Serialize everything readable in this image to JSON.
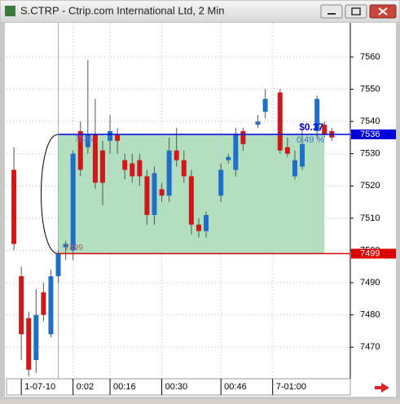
{
  "chart_data": {
    "type": "candlestick",
    "title": "S.CTRP - Ctrip.com International Ltd, 2 Min",
    "x": [
      1,
      2,
      3,
      4,
      5,
      6,
      7,
      8,
      9,
      10,
      11,
      12,
      13,
      14,
      15,
      16,
      17,
      18,
      19,
      20,
      21,
      22,
      23,
      24,
      25,
      26,
      27,
      29,
      30,
      31,
      32,
      34,
      35,
      37,
      38,
      39,
      40,
      42,
      43,
      44
    ],
    "open": [
      7525,
      7492,
      7479,
      7466,
      7487,
      7474,
      7492,
      7501,
      7500,
      7537,
      7532,
      7536,
      7531,
      7534,
      7536,
      7528,
      7527,
      7528,
      7523,
      7511,
      7519,
      7517,
      7531,
      7528,
      7523,
      7508,
      7506,
      7517,
      7528,
      7525,
      7537,
      7539,
      7543,
      7549,
      7532,
      7523,
      7526,
      7537,
      7539,
      7537
    ],
    "high": [
      7532,
      7495,
      7481,
      7488,
      7490,
      7494,
      7500,
      7503,
      7531,
      7540,
      7559,
      7547,
      7534,
      7542,
      7538,
      7530,
      7530,
      7530,
      7525,
      7526,
      7521,
      7535,
      7538,
      7531,
      7525,
      7510,
      7512,
      7527,
      7530,
      7538,
      7538,
      7542,
      7550,
      7550,
      7535,
      7531,
      7537,
      7548,
      7540,
      7538
    ],
    "low": [
      7500,
      7466,
      7461,
      7462,
      7478,
      7473,
      7490,
      7497,
      7497,
      7523,
      7530,
      7519,
      7514,
      7530,
      7530,
      7522,
      7521,
      7520,
      7508,
      7508,
      7515,
      7515,
      7526,
      7521,
      7505,
      7504,
      7504,
      7515,
      7527,
      7523,
      7531,
      7538,
      7541,
      7530,
      7529,
      7522,
      7525,
      7535,
      7535,
      7534
    ],
    "close": [
      7502,
      7474,
      7463,
      7480,
      7480,
      7492,
      7499,
      7502,
      7530,
      7525,
      7536,
      7521,
      7521,
      7537,
      7534,
      7525,
      7523,
      7523,
      7511,
      7524,
      7517,
      7531,
      7528,
      7523,
      7508,
      7506,
      7511,
      7525,
      7529,
      7536,
      7533,
      7540,
      7547,
      7531,
      7530,
      7528,
      7533,
      7547,
      7536,
      7535
    ],
    "up_color": "#1f6fc8",
    "down_color": "#d01818",
    "xlim": [
      0,
      46.5
    ],
    "xticks": [
      {
        "value": 2,
        "label": "1-07-10"
      },
      {
        "value": 9,
        "label": "0:02"
      },
      {
        "value": 14,
        "label": "00:16"
      },
      {
        "value": 21,
        "label": "00:30"
      },
      {
        "value": 29,
        "label": "00:46"
      },
      {
        "value": 36,
        "label": "7-01:00"
      }
    ],
    "ylim": [
      7460.2,
      7570.6
    ],
    "yticks": [
      7470,
      7480,
      7490,
      7500,
      7510,
      7520,
      7530,
      7540,
      7550,
      7560
    ],
    "grid": true,
    "levels": [
      {
        "value": 7536,
        "color": "#0000dd"
      },
      {
        "value": 7499,
        "color": "#dd0000"
      }
    ],
    "measure": {
      "x_start": 7,
      "x_end": 43,
      "change_label": "$0.37",
      "percent_label": "0.49 %",
      "color": "#a8dcb8"
    }
  }
}
